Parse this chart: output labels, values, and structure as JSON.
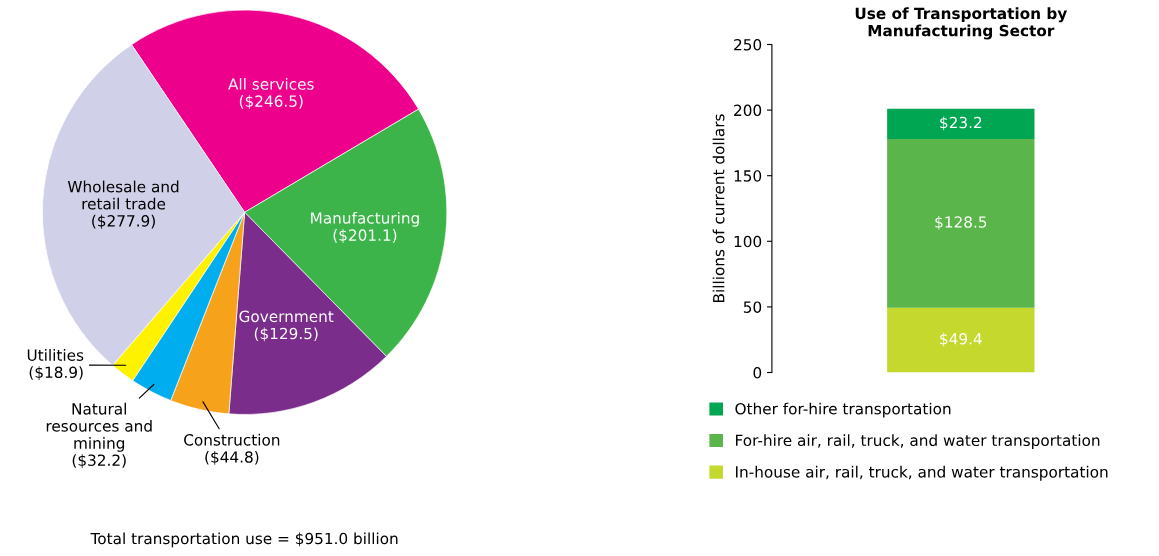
{
  "chart_data": [
    {
      "type": "pie",
      "categories": [
        "All services",
        "Manufacturing",
        "Government",
        "Construction",
        "Natural\nresources and\nmining",
        "Utilities",
        "Wholesale and\nretail trade"
      ],
      "values": [
        246.5,
        201.1,
        129.5,
        44.8,
        32.2,
        18.9,
        277.9
      ],
      "colors": [
        "#ec008c",
        "#3cb44a",
        "#7b2d8b",
        "#f7a21b",
        "#00aeef",
        "#fff200",
        "#d0d0e8"
      ],
      "value_labels": [
        "($246.5)",
        "($201.1)",
        "($129.5)",
        "($44.8)",
        "($32.2)",
        "($18.9)",
        "($277.9)"
      ],
      "annotations": [
        "Total transportation use = $951.0 billion"
      ]
    },
    {
      "type": "bar",
      "title": "Use of Transportation by\nManufacturing Sector",
      "ylabel": "Billions of current dollars",
      "categories": [
        null
      ],
      "stacked": true,
      "series": [
        {
          "name": "In-house air, rail, truck, and water transportation",
          "color": "#c4d82e",
          "values": [
            49.4
          ],
          "value_labels": [
            "$49.4"
          ]
        },
        {
          "name": "For-hire air, rail, truck, and water transportation",
          "color": "#5ab54a",
          "values": [
            128.5
          ],
          "value_labels": [
            "$128.5"
          ]
        },
        {
          "name": "Other for-hire transportation",
          "color": "#00a651",
          "values": [
            23.2
          ],
          "value_labels": [
            "$23.2"
          ]
        }
      ],
      "ylim": [
        0,
        250
      ],
      "yticks": [
        0,
        50,
        100,
        150,
        200,
        250
      ],
      "legend": "bottom"
    }
  ]
}
